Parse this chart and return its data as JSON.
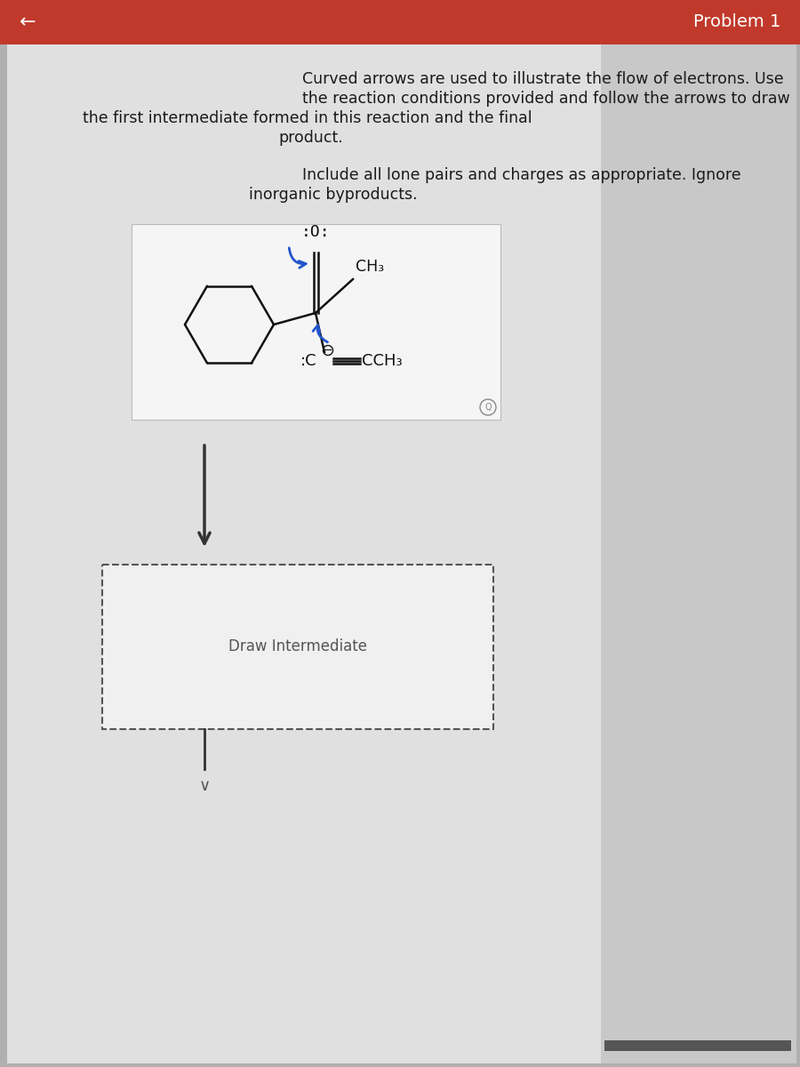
{
  "bg_color_outer": "#b0b0b0",
  "bg_color_main": "#e0e0e0",
  "bg_color_right": "#c8c8c8",
  "header_color": "#c0392b",
  "header_text": "Problem 1",
  "back_arrow": "←",
  "text_color": "#1a1a1a",
  "line1": "Curved arrows are used to illustrate the flow of electrons. Use",
  "line2": "the reaction conditions provided and follow the arrows to draw",
  "line3": "  the first intermediate formed in this reaction and the final",
  "line4": "product.",
  "line5": "Include all lone pairs and charges as appropriate. Ignore",
  "line6": "inorganic byproducts.",
  "draw_intermediate_label": "Draw Intermediate",
  "arrow_color": "#2255cc",
  "bond_color": "#111111",
  "down_arrow_color": "#333333",
  "chem_box_bg": "#f5f5f5",
  "chem_box_border": "#bbbbbb",
  "draw_box_bg": "#f0f0f0",
  "draw_box_border": "#555555",
  "zoom_icon_color": "#888888",
  "chevron_color": "#555555",
  "bottom_bar_color": "#555555"
}
